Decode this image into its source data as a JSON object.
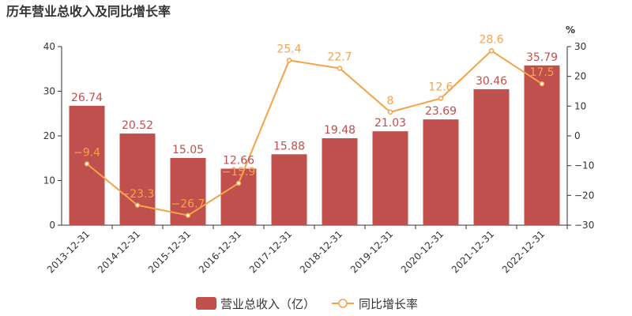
{
  "colors": {
    "bar": "#c0504d",
    "line": "#f4a349",
    "axis": "#333333",
    "grid": "#e6e6e6"
  },
  "chart_data": {
    "type": "bar",
    "title": "历年营业总收入及同比增长率",
    "categories": [
      "2013-12-31",
      "2014-12-31",
      "2015-12-31",
      "2016-12-31",
      "2017-12-31",
      "2018-12-31",
      "2019-12-31",
      "2020-12-31",
      "2021-12-31",
      "2022-12-31"
    ],
    "series": [
      {
        "name": "营业总收入（亿）",
        "type": "bar",
        "axis": "left",
        "values": [
          26.74,
          20.52,
          15.05,
          12.66,
          15.88,
          19.48,
          21.03,
          23.69,
          30.46,
          35.79
        ],
        "labels": [
          "26.74",
          "20.52",
          "15.05",
          "12.66",
          "15.88",
          "19.48",
          "21.03",
          "23.69",
          "30.46",
          "35.79"
        ]
      },
      {
        "name": "同比增长率",
        "type": "line",
        "axis": "right",
        "values": [
          -9.4,
          -23.3,
          -26.7,
          -15.9,
          25.4,
          22.7,
          8,
          12.6,
          28.6,
          17.5
        ],
        "labels": [
          "−9.4",
          "−23.3",
          "−26.7",
          "−15.9",
          "25.4",
          "22.7",
          "8",
          "12.6",
          "28.6",
          "17.5"
        ]
      }
    ],
    "left_axis": {
      "min": 0,
      "max": 40,
      "ticks": [
        "0",
        "10",
        "20",
        "30",
        "40"
      ],
      "tick_values": [
        0,
        10,
        20,
        30,
        40
      ]
    },
    "right_axis": {
      "min": -30,
      "max": 30,
      "unit": "%",
      "ticks": [
        "−30",
        "−20",
        "−10",
        "0",
        "10",
        "20",
        "30"
      ],
      "tick_values": [
        -30,
        -20,
        -10,
        0,
        10,
        20,
        30
      ]
    },
    "grid": false,
    "legend_position": "bottom"
  }
}
